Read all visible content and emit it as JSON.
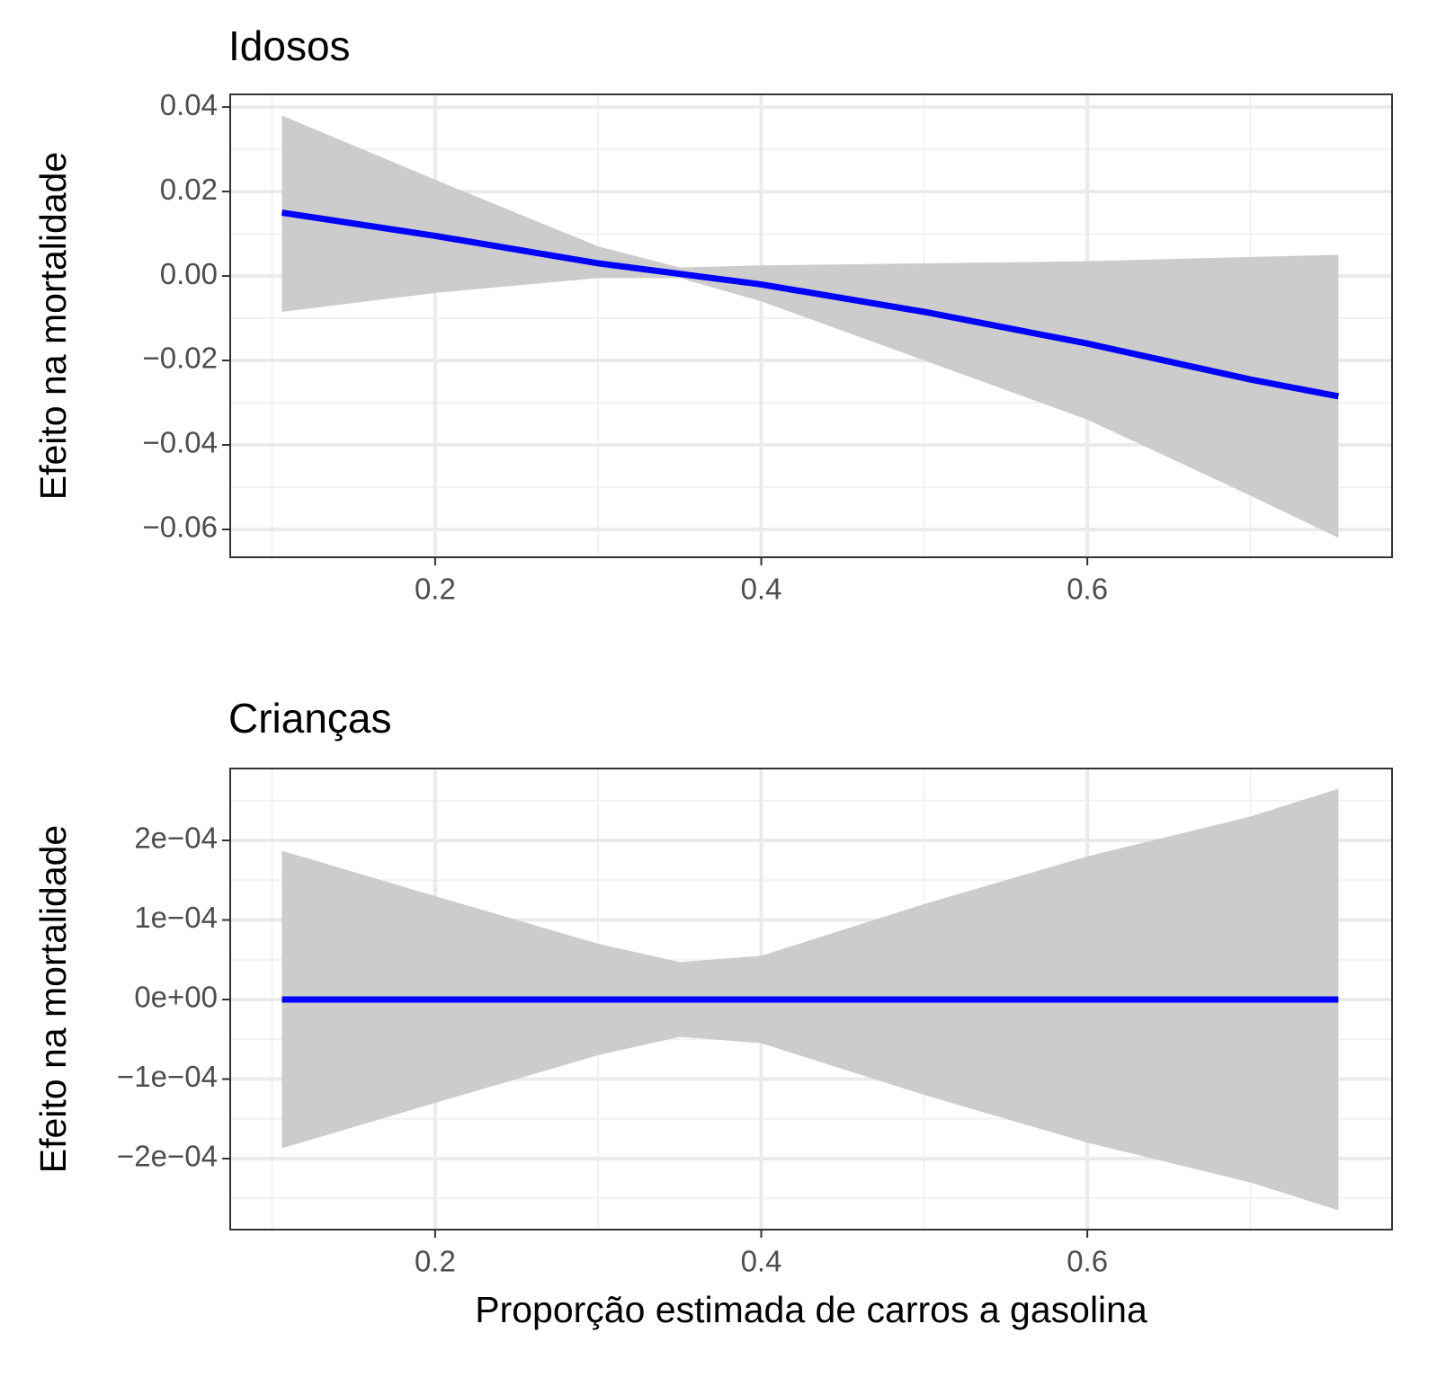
{
  "chart_data": [
    {
      "type": "line",
      "title": "Idosos",
      "ylabel": "Efeito na mortalidade",
      "x": [
        0.106,
        0.2,
        0.3,
        0.35,
        0.4,
        0.5,
        0.6,
        0.7,
        0.754
      ],
      "series": [
        {
          "color": "#0000ff",
          "band_color": "#cccccc",
          "values": [
            0.015,
            0.0095,
            0.003,
            0.0005,
            -0.002,
            -0.0085,
            -0.016,
            -0.0245,
            -0.0285
          ],
          "upper": [
            0.038,
            0.0228,
            0.007,
            0.002,
            0.0025,
            0.003,
            0.0035,
            0.0045,
            0.005
          ],
          "lower": [
            -0.0085,
            -0.004,
            -0.0005,
            -0.0005,
            -0.006,
            -0.02,
            -0.034,
            -0.052,
            -0.062
          ]
        }
      ],
      "xlim": [
        0.0743,
        0.7869
      ],
      "xticks": [
        0.2,
        0.4,
        0.6
      ],
      "ylim": [
        -0.0666,
        0.043
      ],
      "yticks": [
        {
          "value": -0.06,
          "label": "−0.06"
        },
        {
          "value": -0.04,
          "label": "−0.04"
        },
        {
          "value": -0.02,
          "label": "−0.02"
        },
        {
          "value": 0,
          "label": "0.00"
        },
        {
          "value": 0.02,
          "label": "0.02"
        },
        {
          "value": 0.04,
          "label": "0.04"
        }
      ],
      "grid": true,
      "minor_grid": true
    },
    {
      "type": "line",
      "title": "Crianças",
      "ylabel": "Efeito na mortalidade",
      "xlabel": "Proporção estimada de carros a gasolina",
      "x": [
        0.106,
        0.2,
        0.3,
        0.35,
        0.4,
        0.5,
        0.6,
        0.7,
        0.754
      ],
      "series": [
        {
          "color": "#0000ff",
          "band_color": "#cccccc",
          "values": [
            0,
            0,
            0,
            0,
            0,
            0,
            0,
            0,
            0
          ],
          "upper": [
            0.000187,
            0.00013,
            7e-05,
            4.7e-05,
            5.5e-05,
            0.00012,
            0.00018,
            0.00023,
            0.000265
          ],
          "lower": [
            -0.000187,
            -0.00013,
            -7e-05,
            -4.7e-05,
            -5.5e-05,
            -0.00012,
            -0.00018,
            -0.00023,
            -0.000265
          ]
        }
      ],
      "xlim": [
        0.0743,
        0.7869
      ],
      "xticks": [
        0.2,
        0.4,
        0.6
      ],
      "ylim": [
        -0.0002893,
        0.0002904
      ],
      "yticks": [
        {
          "value": -0.0002,
          "label": "−2e−04"
        },
        {
          "value": -0.0001,
          "label": "−1e−04"
        },
        {
          "value": 0,
          "label": "0e+00"
        },
        {
          "value": 0.0001,
          "label": "1e−04"
        },
        {
          "value": 0.0002,
          "label": "2e−04"
        }
      ],
      "grid": true,
      "minor_grid": true
    }
  ]
}
